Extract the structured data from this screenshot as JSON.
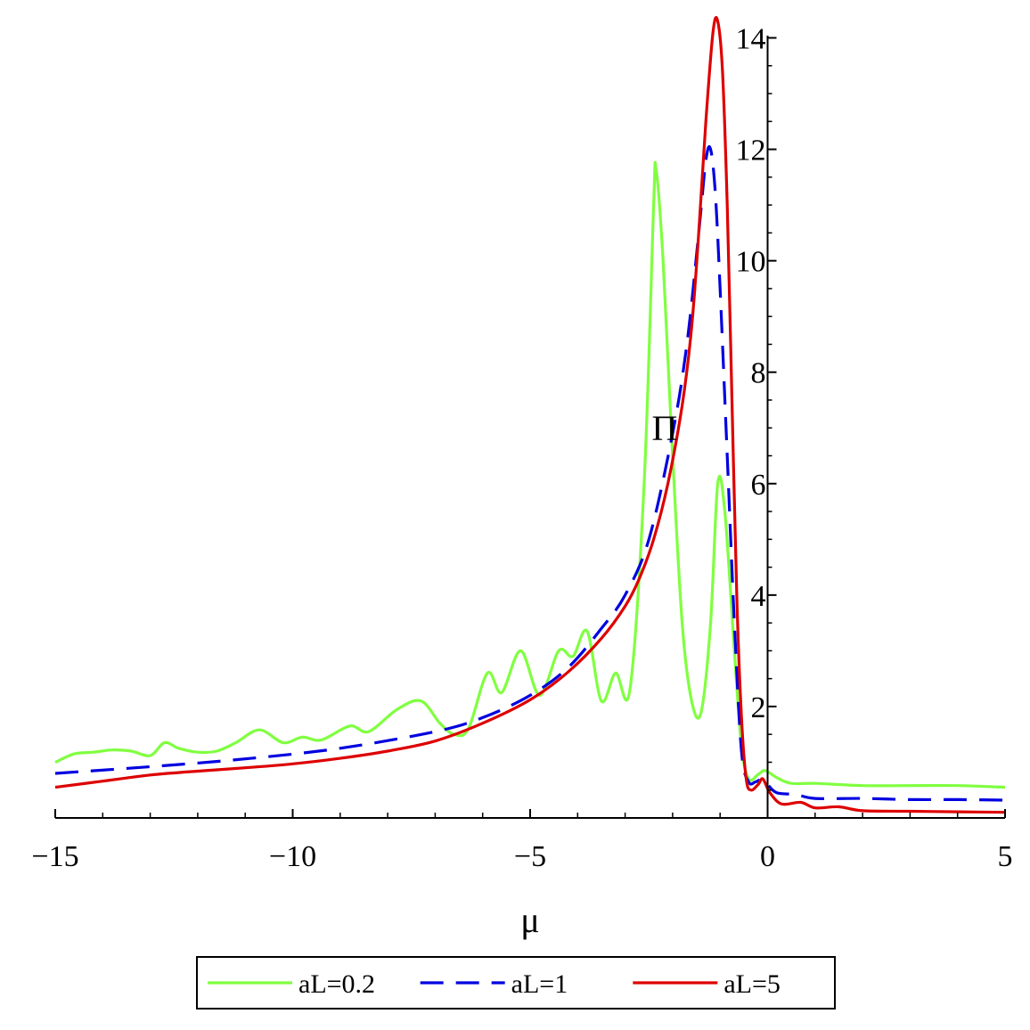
{
  "chart_data": {
    "type": "line",
    "title": "",
    "xlabel": "μ",
    "ylabel": "Π",
    "xlim": [
      -15,
      5
    ],
    "ylim": [
      0,
      14.2
    ],
    "x_ticks": [
      -15,
      -10,
      -5,
      0,
      5
    ],
    "x_tick_labels": [
      "−15",
      "−10",
      "−5",
      "0",
      "5"
    ],
    "y_ticks": [
      2,
      4,
      6,
      8,
      10,
      12,
      14
    ],
    "y_tick_labels": [
      "2",
      "4",
      "6",
      "8",
      "10",
      "12",
      "14"
    ],
    "grid": false,
    "legend_position": "bottom",
    "series": [
      {
        "name": "aL=0.2",
        "color": "#80ff40",
        "dash": "solid",
        "points": [
          [
            -15,
            1.0
          ],
          [
            -14.6,
            1.15
          ],
          [
            -14.2,
            1.18
          ],
          [
            -13.8,
            1.22
          ],
          [
            -13.4,
            1.2
          ],
          [
            -13.0,
            1.12
          ],
          [
            -12.7,
            1.35
          ],
          [
            -12.4,
            1.25
          ],
          [
            -12.0,
            1.18
          ],
          [
            -11.6,
            1.2
          ],
          [
            -11.2,
            1.35
          ],
          [
            -10.7,
            1.58
          ],
          [
            -10.2,
            1.35
          ],
          [
            -9.8,
            1.45
          ],
          [
            -9.4,
            1.4
          ],
          [
            -8.8,
            1.65
          ],
          [
            -8.4,
            1.55
          ],
          [
            -7.8,
            1.95
          ],
          [
            -7.3,
            2.1
          ],
          [
            -6.9,
            1.7
          ],
          [
            -6.6,
            1.5
          ],
          [
            -6.3,
            1.6
          ],
          [
            -5.9,
            2.6
          ],
          [
            -5.6,
            2.25
          ],
          [
            -5.2,
            3.0
          ],
          [
            -4.8,
            2.2
          ],
          [
            -4.4,
            3.0
          ],
          [
            -4.1,
            2.9
          ],
          [
            -3.8,
            3.35
          ],
          [
            -3.5,
            2.1
          ],
          [
            -3.2,
            2.6
          ],
          [
            -2.9,
            2.3
          ],
          [
            -2.6,
            6.0
          ],
          [
            -2.4,
            11.0
          ],
          [
            -2.35,
            11.65
          ],
          [
            -2.2,
            10.0
          ],
          [
            -2.0,
            6.5
          ],
          [
            -1.8,
            3.5
          ],
          [
            -1.6,
            2.1
          ],
          [
            -1.4,
            1.9
          ],
          [
            -1.2,
            3.5
          ],
          [
            -1.05,
            6.0
          ],
          [
            -0.9,
            5.5
          ],
          [
            -0.7,
            3.0
          ],
          [
            -0.55,
            1.3
          ],
          [
            -0.4,
            0.7
          ],
          [
            -0.2,
            0.78
          ],
          [
            -0.05,
            0.85
          ],
          [
            0.2,
            0.72
          ],
          [
            0.5,
            0.62
          ],
          [
            1.0,
            0.62
          ],
          [
            2.0,
            0.58
          ],
          [
            3.0,
            0.58
          ],
          [
            4.0,
            0.58
          ],
          [
            5.0,
            0.55
          ]
        ]
      },
      {
        "name": "aL=1",
        "color": "#0000e0",
        "dash": "dashed",
        "points": [
          [
            -15,
            0.8
          ],
          [
            -13,
            0.92
          ],
          [
            -11,
            1.06
          ],
          [
            -9,
            1.25
          ],
          [
            -7,
            1.55
          ],
          [
            -6,
            1.8
          ],
          [
            -5,
            2.2
          ],
          [
            -4.2,
            2.7
          ],
          [
            -3.5,
            3.4
          ],
          [
            -3.0,
            4.0
          ],
          [
            -2.5,
            5.0
          ],
          [
            -2.0,
            6.9
          ],
          [
            -1.7,
            8.5
          ],
          [
            -1.45,
            10.5
          ],
          [
            -1.3,
            11.8
          ],
          [
            -1.2,
            12.0
          ],
          [
            -1.1,
            11.2
          ],
          [
            -1.0,
            9.5
          ],
          [
            -0.85,
            6.5
          ],
          [
            -0.7,
            3.5
          ],
          [
            -0.55,
            1.2
          ],
          [
            -0.4,
            0.65
          ],
          [
            -0.25,
            0.65
          ],
          [
            -0.1,
            0.7
          ],
          [
            0.0,
            0.6
          ],
          [
            0.2,
            0.45
          ],
          [
            0.6,
            0.42
          ],
          [
            1.0,
            0.35
          ],
          [
            2.0,
            0.35
          ],
          [
            3.0,
            0.33
          ],
          [
            4.0,
            0.33
          ],
          [
            5.0,
            0.32
          ]
        ]
      },
      {
        "name": "aL=5",
        "color": "#dd0000",
        "dash": "solid",
        "points": [
          [
            -15,
            0.55
          ],
          [
            -14,
            0.66
          ],
          [
            -13,
            0.77
          ],
          [
            -12,
            0.84
          ],
          [
            -11,
            0.9
          ],
          [
            -10,
            0.97
          ],
          [
            -9,
            1.07
          ],
          [
            -8,
            1.2
          ],
          [
            -7,
            1.38
          ],
          [
            -6,
            1.7
          ],
          [
            -5,
            2.12
          ],
          [
            -4.2,
            2.62
          ],
          [
            -3.5,
            3.22
          ],
          [
            -3.0,
            3.8
          ],
          [
            -2.7,
            4.3
          ],
          [
            -2.4,
            5.0
          ],
          [
            -2.1,
            6.0
          ],
          [
            -1.8,
            7.4
          ],
          [
            -1.6,
            8.8
          ],
          [
            -1.45,
            10.5
          ],
          [
            -1.3,
            12.5
          ],
          [
            -1.15,
            14.1
          ],
          [
            -1.05,
            14.3
          ],
          [
            -0.95,
            13.4
          ],
          [
            -0.85,
            11.0
          ],
          [
            -0.75,
            7.5
          ],
          [
            -0.65,
            4.0
          ],
          [
            -0.55,
            1.8
          ],
          [
            -0.45,
            0.7
          ],
          [
            -0.35,
            0.5
          ],
          [
            -0.2,
            0.6
          ],
          [
            -0.1,
            0.7
          ],
          [
            0.05,
            0.45
          ],
          [
            0.3,
            0.25
          ],
          [
            0.7,
            0.28
          ],
          [
            1.0,
            0.18
          ],
          [
            1.5,
            0.2
          ],
          [
            2.0,
            0.13
          ],
          [
            3.0,
            0.12
          ],
          [
            4.0,
            0.11
          ],
          [
            5.0,
            0.1
          ]
        ]
      }
    ]
  }
}
